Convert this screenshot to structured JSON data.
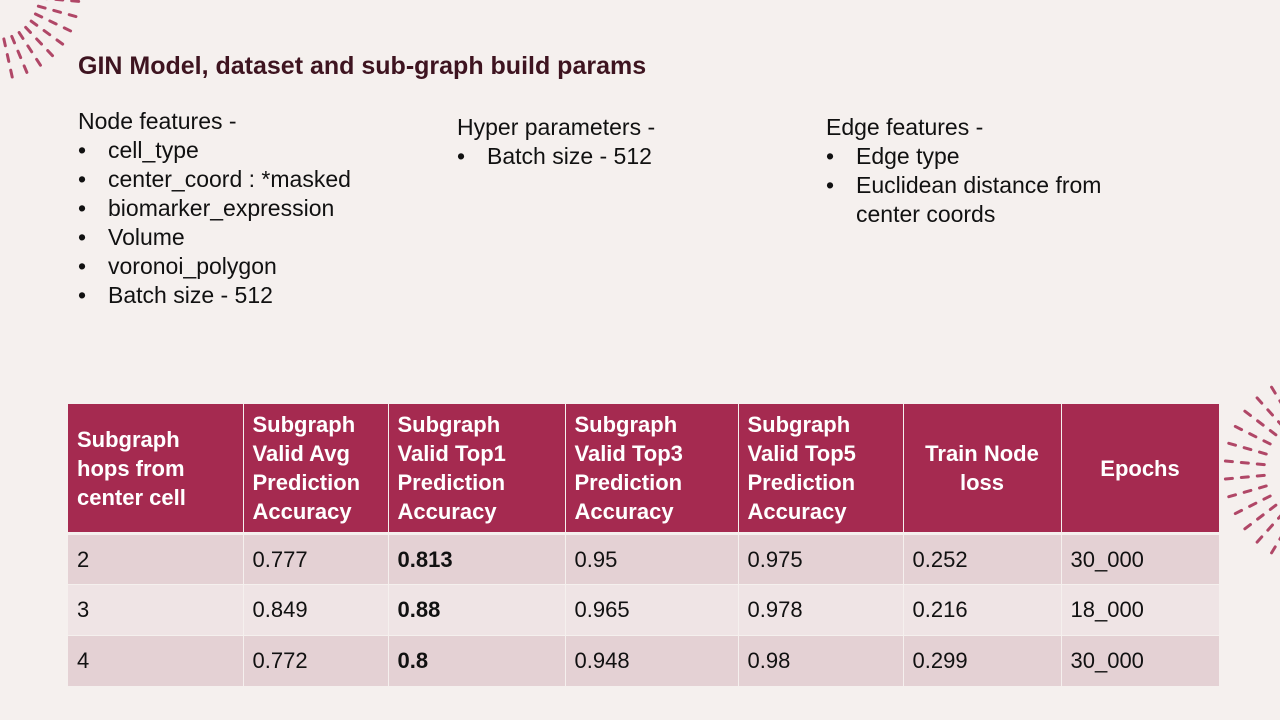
{
  "slide": {
    "title": "GIN Model, dataset and sub-graph build params",
    "colors": {
      "accent": "#a52a50",
      "title": "#3e1420",
      "background": "#f5f0ee",
      "row_dark": "#e4d1d4",
      "row_light": "#efe4e5"
    }
  },
  "node_features": {
    "heading": "Node features -",
    "items": [
      "cell_type",
      "center_coord : *masked",
      "biomarker_expression",
      "Volume",
      "voronoi_polygon",
      "Batch size - 512"
    ]
  },
  "hyper_parameters": {
    "heading": "Hyper parameters -",
    "items": [
      "Batch size - 512"
    ]
  },
  "edge_features": {
    "heading": "Edge features -",
    "items": [
      "Edge type",
      "Euclidean distance from center coords"
    ]
  },
  "table": {
    "headers": [
      "Subgraph hops from center cell",
      "Subgraph Valid Avg Prediction Accuracy",
      "Subgraph Valid Top1 Prediction Accuracy",
      "Subgraph Valid Top3 Prediction Accuracy",
      "Subgraph Valid Top5 Prediction Accuracy",
      "Train Node loss",
      "Epochs"
    ],
    "rows": [
      [
        "2",
        "0.777",
        "0.813",
        "0.95",
        "0.975",
        "0.252",
        "30_000"
      ],
      [
        "3",
        "0.849",
        "0.88",
        "0.965",
        "0.978",
        "0.216",
        "18_000"
      ],
      [
        "4",
        "0.772",
        "0.8",
        "0.948",
        "0.98",
        "0.299",
        "30_000"
      ]
    ]
  }
}
